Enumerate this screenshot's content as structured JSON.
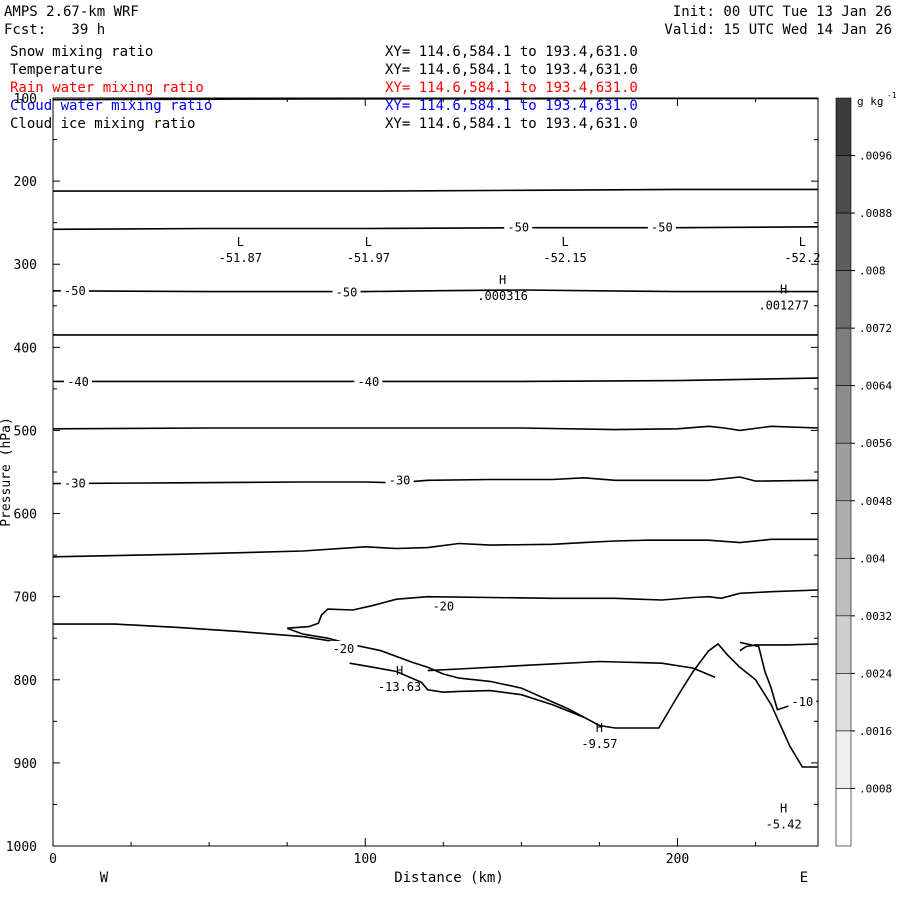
{
  "header": {
    "model": "AMPS 2.67-km WRF",
    "forecast": "Fcst:   39 h",
    "init": "Init: 00 UTC Tue 13 Jan 26",
    "valid": "Valid: 15 UTC Wed 14 Jan 26"
  },
  "fields": [
    {
      "name": "Snow mixing ratio",
      "xy": "XY= 114.6,584.1 to 193.4,631.0",
      "color": "#000000"
    },
    {
      "name": "Temperature",
      "xy": "XY= 114.6,584.1 to 193.4,631.0",
      "color": "#000000"
    },
    {
      "name": "Rain water mixing ratio",
      "xy": "XY= 114.6,584.1 to 193.4,631.0",
      "color": "#ff0000"
    },
    {
      "name": "Cloud water mixing ratio",
      "xy": "XY= 114.6,584.1 to 193.4,631.0",
      "color": "#0000ff"
    },
    {
      "name": "Cloud ice mixing ratio",
      "xy": "XY= 114.6,584.1 to 193.4,631.0",
      "color": "#000000"
    }
  ],
  "chart_data": {
    "type": "line",
    "title": "",
    "xlabel": "Distance (km)",
    "ylabel": "Pressure (hPa)",
    "xlim": [
      0,
      245
    ],
    "ylim": [
      1000,
      100
    ],
    "xticks": [
      "0",
      "100",
      "200"
    ],
    "yticks": [
      "100",
      "200",
      "300",
      "400",
      "500",
      "600",
      "700",
      "800",
      "900",
      "1000"
    ],
    "x_end_labels": {
      "left": "W",
      "right": "E"
    },
    "colorbar": {
      "unit": "g kg",
      "unit_exp": "-1",
      "labels": [
        ".0096",
        ".0088",
        ".008",
        ".0072",
        ".0064",
        ".0056",
        ".0048",
        ".004",
        ".0032",
        ".0024",
        ".0016",
        ".0008"
      ]
    },
    "series": [
      {
        "points": [
          [
            0,
            102
          ],
          [
            50,
            101.5
          ],
          [
            100,
            101
          ],
          [
            150,
            101
          ],
          [
            200,
            100.5
          ],
          [
            245,
            100.5
          ]
        ]
      },
      {
        "points": [
          [
            0,
            212
          ],
          [
            50,
            212
          ],
          [
            100,
            212
          ],
          [
            150,
            211
          ],
          [
            200,
            210
          ],
          [
            245,
            210
          ]
        ]
      },
      {
        "points": [
          [
            0,
            258
          ],
          [
            50,
            257
          ],
          [
            100,
            257
          ],
          [
            150,
            256
          ],
          [
            200,
            256
          ],
          [
            245,
            255
          ]
        ]
      },
      {
        "points": [
          [
            0,
            332
          ],
          [
            50,
            333
          ],
          [
            100,
            333
          ],
          [
            120,
            332
          ],
          [
            150,
            331
          ],
          [
            200,
            333
          ],
          [
            245,
            333
          ]
        ]
      },
      {
        "points": [
          [
            0,
            385
          ],
          [
            50,
            385
          ],
          [
            100,
            385
          ],
          [
            150,
            385
          ],
          [
            200,
            385
          ],
          [
            245,
            385
          ]
        ]
      },
      {
        "points": [
          [
            0,
            441
          ],
          [
            50,
            441
          ],
          [
            100,
            441
          ],
          [
            150,
            441
          ],
          [
            200,
            440
          ],
          [
            245,
            437
          ]
        ]
      },
      {
        "points": [
          [
            0,
            498
          ],
          [
            50,
            497
          ],
          [
            100,
            497
          ],
          [
            150,
            497
          ],
          [
            180,
            499
          ],
          [
            200,
            498
          ],
          [
            210,
            495
          ],
          [
            215,
            497
          ],
          [
            220,
            500
          ],
          [
            230,
            495
          ],
          [
            245,
            497
          ]
        ]
      },
      {
        "points": [
          [
            0,
            564
          ],
          [
            40,
            563
          ],
          [
            80,
            562
          ],
          [
            100,
            562
          ],
          [
            110,
            563
          ],
          [
            120,
            560
          ],
          [
            140,
            559
          ],
          [
            160,
            559
          ],
          [
            170,
            557
          ],
          [
            180,
            560
          ],
          [
            200,
            560
          ],
          [
            210,
            560
          ],
          [
            220,
            556
          ],
          [
            225,
            561
          ],
          [
            245,
            560
          ]
        ]
      },
      {
        "points": [
          [
            0,
            652
          ],
          [
            40,
            649
          ],
          [
            80,
            645
          ],
          [
            100,
            640
          ],
          [
            110,
            642
          ],
          [
            120,
            641
          ],
          [
            130,
            636
          ],
          [
            140,
            638
          ],
          [
            160,
            637
          ],
          [
            170,
            635
          ],
          [
            180,
            633
          ],
          [
            190,
            632
          ],
          [
            200,
            632
          ],
          [
            210,
            632
          ],
          [
            220,
            635
          ],
          [
            230,
            631
          ],
          [
            245,
            631
          ]
        ]
      },
      {
        "points": [
          [
            0,
            733
          ],
          [
            20,
            733
          ],
          [
            40,
            737
          ],
          [
            60,
            742
          ],
          [
            80,
            748
          ],
          [
            95,
            757
          ],
          [
            105,
            765
          ],
          [
            115,
            779
          ],
          [
            120,
            785
          ],
          [
            125,
            793
          ],
          [
            130,
            798
          ],
          [
            140,
            802
          ],
          [
            150,
            810
          ],
          [
            165,
            835
          ],
          [
            175,
            855
          ],
          [
            180,
            858
          ],
          [
            194,
            858
          ],
          [
            200,
            820
          ],
          [
            205,
            790
          ],
          [
            210,
            765
          ],
          [
            213,
            757
          ],
          [
            216,
            770
          ],
          [
            220,
            785
          ],
          [
            225,
            800
          ],
          [
            230,
            830
          ],
          [
            236,
            880
          ],
          [
            240,
            905
          ],
          [
            245,
            905
          ]
        ]
      },
      {
        "points": [
          [
            75,
            738
          ],
          [
            80,
            745
          ],
          [
            88,
            750
          ],
          [
            95,
            757
          ]
        ]
      },
      {
        "points": [
          [
            75,
            738
          ],
          [
            82,
            736
          ],
          [
            85,
            732
          ],
          [
            86,
            722
          ],
          [
            88,
            715
          ],
          [
            96,
            716
          ],
          [
            102,
            711
          ],
          [
            110,
            703
          ],
          [
            120,
            700
          ],
          [
            140,
            701
          ],
          [
            160,
            702
          ],
          [
            180,
            702
          ],
          [
            195,
            704
          ],
          [
            205,
            701
          ],
          [
            210,
            700
          ],
          [
            214,
            702
          ],
          [
            220,
            696
          ],
          [
            230,
            694
          ],
          [
            245,
            692
          ]
        ]
      },
      {
        "points": [
          [
            95,
            780
          ],
          [
            104,
            786
          ],
          [
            110,
            790
          ],
          [
            118,
            803
          ],
          [
            120,
            812
          ],
          [
            125,
            815
          ],
          [
            130,
            814
          ],
          [
            140,
            813
          ],
          [
            150,
            818
          ],
          [
            160,
            830
          ],
          [
            170,
            845
          ]
        ]
      },
      {
        "points": [
          [
            120,
            789
          ],
          [
            130,
            787
          ],
          [
            150,
            783
          ],
          [
            175,
            778
          ],
          [
            195,
            780
          ],
          [
            205,
            786
          ],
          [
            212,
            797
          ]
        ]
      },
      {
        "points": [
          [
            220,
            765
          ],
          [
            222,
            760
          ],
          [
            225,
            758
          ],
          [
            235,
            758
          ],
          [
            245,
            757
          ]
        ]
      },
      {
        "points": [
          [
            220,
            755
          ],
          [
            226,
            760
          ],
          [
            228,
            790
          ],
          [
            230,
            810
          ],
          [
            232,
            836
          ],
          [
            240,
            826
          ],
          [
            245,
            826
          ]
        ]
      }
    ],
    "contour_labels": [
      {
        "text": "-50",
        "x": 149,
        "y": 256
      },
      {
        "text": "-50",
        "x": 195,
        "y": 256
      },
      {
        "text": "-50",
        "x": 7,
        "y": 332
      },
      {
        "text": "-50",
        "x": 94,
        "y": 334
      },
      {
        "text": "-40",
        "x": 8,
        "y": 442
      },
      {
        "text": "-40",
        "x": 101,
        "y": 442
      },
      {
        "text": "-30",
        "x": 7,
        "y": 564
      },
      {
        "text": "-30",
        "x": 111,
        "y": 560
      },
      {
        "text": "-20",
        "x": 125,
        "y": 712
      },
      {
        "text": "-20",
        "x": 93,
        "y": 763
      },
      {
        "text": "-10",
        "x": 240,
        "y": 827
      }
    ],
    "extrema": [
      {
        "kind": "L",
        "value": "-51.87",
        "x": 60,
        "y": 290
      },
      {
        "kind": "L",
        "value": "-51.97",
        "x": 101,
        "y": 290
      },
      {
        "kind": "L",
        "value": "-52.15",
        "x": 164,
        "y": 290
      },
      {
        "kind": "L",
        "value": "-52.2",
        "x": 240,
        "y": 290
      },
      {
        "kind": "H",
        "value": ".000316",
        "x": 144,
        "y": 336
      },
      {
        "kind": "H",
        "value": ".001277",
        "x": 234,
        "y": 347
      },
      {
        "kind": "H",
        "value": "-13.63",
        "x": 111,
        "y": 806
      },
      {
        "kind": "H",
        "value": "-9.57",
        "x": 175,
        "y": 875
      },
      {
        "kind": "H",
        "value": "-5.42",
        "x": 234,
        "y": 972
      }
    ]
  }
}
